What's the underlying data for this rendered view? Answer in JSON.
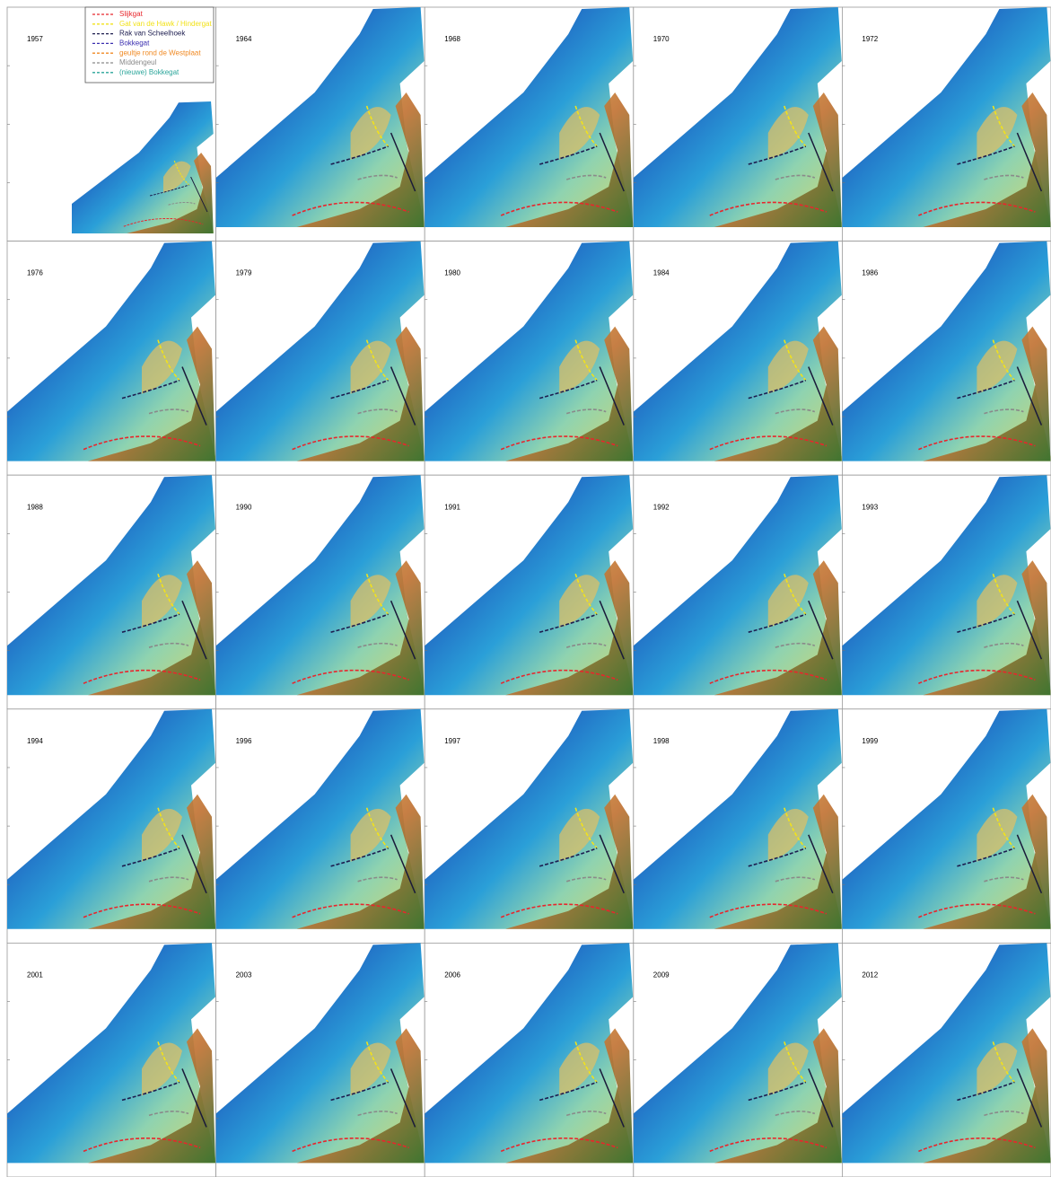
{
  "panels": [
    {
      "year": "1957"
    },
    {
      "year": "1964"
    },
    {
      "year": "1968"
    },
    {
      "year": "1970"
    },
    {
      "year": "1972"
    },
    {
      "year": "1976"
    },
    {
      "year": "1979"
    },
    {
      "year": "1980"
    },
    {
      "year": "1984"
    },
    {
      "year": "1986"
    },
    {
      "year": "1988"
    },
    {
      "year": "1990"
    },
    {
      "year": "1991"
    },
    {
      "year": "1992"
    },
    {
      "year": "1993"
    },
    {
      "year": "1994"
    },
    {
      "year": "1996"
    },
    {
      "year": "1997"
    },
    {
      "year": "1998"
    },
    {
      "year": "1999"
    },
    {
      "year": "2001"
    },
    {
      "year": "2003"
    },
    {
      "year": "2006"
    },
    {
      "year": "2009"
    },
    {
      "year": "2012"
    }
  ],
  "legend": [
    {
      "label": "Slijkgat",
      "color": "#e8262c"
    },
    {
      "label": "Gat van de Hawk / Hindergat",
      "color": "#f2e21a"
    },
    {
      "label": "Rak van Scheelhoek",
      "color": "#1d1d4f"
    },
    {
      "label": "Bokkegat",
      "color": "#3b2fb0"
    },
    {
      "label": "geultje rond de Westplaat",
      "color": "#f08a24"
    },
    {
      "label": "Middengeul",
      "color": "#8a8a8a"
    },
    {
      "label": "(nieuwe) Bokkegat",
      "color": "#2aa59a"
    }
  ]
}
